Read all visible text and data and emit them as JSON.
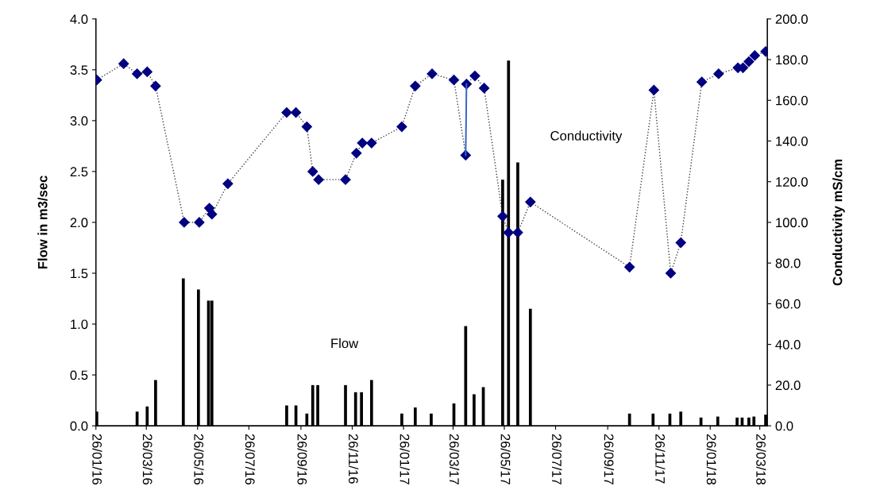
{
  "chart_data": {
    "type": "bar",
    "ylabel": "Flow in m3/sec",
    "y2label": "Conductivity mS/cm",
    "xlim": [
      "2016-01-26",
      "2018-04-04"
    ],
    "xticks": [
      {
        "value": "2016-01-26",
        "label": "26/01/16"
      },
      {
        "value": "2016-03-26",
        "label": "26/03/16"
      },
      {
        "value": "2016-05-26",
        "label": "26/05/16"
      },
      {
        "value": "2016-07-26",
        "label": "26/07/16"
      },
      {
        "value": "2016-09-26",
        "label": "26/09/16"
      },
      {
        "value": "2016-11-26",
        "label": "26/11/16"
      },
      {
        "value": "2017-01-26",
        "label": "26/01/17"
      },
      {
        "value": "2017-03-26",
        "label": "26/03/17"
      },
      {
        "value": "2017-05-26",
        "label": "26/05/17"
      },
      {
        "value": "2017-07-26",
        "label": "26/07/17"
      },
      {
        "value": "2017-09-26",
        "label": "26/09/17"
      },
      {
        "value": "2017-11-26",
        "label": "26/11/17"
      },
      {
        "value": "2018-01-26",
        "label": "26/01/18"
      },
      {
        "value": "2018-03-26",
        "label": "26/03/18"
      }
    ],
    "ylim": [
      0,
      4
    ],
    "yticks": [
      {
        "value": 0,
        "label": "0.0"
      },
      {
        "value": 0.5,
        "label": "0.5"
      },
      {
        "value": 1,
        "label": "1.0"
      },
      {
        "value": 1.5,
        "label": "1.5"
      },
      {
        "value": 2,
        "label": "2.0"
      },
      {
        "value": 2.5,
        "label": "2.5"
      },
      {
        "value": 3,
        "label": "3.0"
      },
      {
        "value": 3.5,
        "label": "3.5"
      },
      {
        "value": 4,
        "label": "4.0"
      }
    ],
    "y2lim": [
      0,
      200
    ],
    "y2ticks": [
      {
        "value": 0,
        "label": "0.0"
      },
      {
        "value": 20,
        "label": "20.0"
      },
      {
        "value": 40,
        "label": "40.0"
      },
      {
        "value": 60,
        "label": "60.0"
      },
      {
        "value": 80,
        "label": "80.0"
      },
      {
        "value": 100,
        "label": "100.0"
      },
      {
        "value": 120,
        "label": "120.0"
      },
      {
        "value": 140,
        "label": "140.0"
      },
      {
        "value": 160,
        "label": "160.0"
      },
      {
        "value": 180,
        "label": "180.0"
      },
      {
        "value": 200,
        "label": "200.0"
      }
    ],
    "grid": false,
    "legend": false,
    "series": [
      {
        "name": "Flow",
        "color": "#000000",
        "x": [
          "2016-01-27",
          "2016-03-15",
          "2016-03-27",
          "2016-04-06",
          "2016-05-09",
          "2016-05-27",
          "2016-06-08",
          "2016-06-12",
          "2016-09-09",
          "2016-09-20",
          "2016-10-03",
          "2016-10-10",
          "2016-10-16",
          "2016-11-18",
          "2016-11-30",
          "2016-12-07",
          "2016-12-19",
          "2017-01-24",
          "2017-02-09",
          "2017-02-28",
          "2017-03-27",
          "2017-04-10",
          "2017-04-20",
          "2017-05-01",
          "2017-05-24",
          "2017-05-31",
          "2017-06-11",
          "2017-06-26",
          "2017-10-22",
          "2017-11-19",
          "2017-12-09",
          "2017-12-22",
          "2018-01-15",
          "2018-02-04",
          "2018-02-27",
          "2018-03-05",
          "2018-03-13",
          "2018-03-19",
          "2018-04-02"
        ],
        "values": [
          0.14,
          0.14,
          0.19,
          0.45,
          1.45,
          1.34,
          1.23,
          1.23,
          0.2,
          0.2,
          0.12,
          0.4,
          0.4,
          0.4,
          0.33,
          0.33,
          0.45,
          0.12,
          0.18,
          0.12,
          0.22,
          0.98,
          0.31,
          0.38,
          2.42,
          3.59,
          2.59,
          1.15,
          0.12,
          0.12,
          0.12,
          0.14,
          0.08,
          0.09,
          0.08,
          0.08,
          0.08,
          0.09,
          0.11
        ]
      },
      {
        "name": "Conductivity",
        "type": "line",
        "axis": "y2",
        "color": "#000080",
        "marker": "diamond",
        "line_style": "dotted",
        "x": [
          "2016-01-27",
          "2016-02-28",
          "2016-03-15",
          "2016-03-27",
          "2016-04-06",
          "2016-05-10",
          "2016-05-28",
          "2016-06-09",
          "2016-06-12",
          "2016-07-01",
          "2016-09-09",
          "2016-09-20",
          "2016-10-03",
          "2016-10-10",
          "2016-10-17",
          "2016-11-18",
          "2016-12-01",
          "2016-12-08",
          "2016-12-19",
          "2017-01-24",
          "2017-02-09",
          "2017-03-01",
          "2017-03-27",
          "2017-04-10",
          "2017-04-11",
          "2017-04-21",
          "2017-05-02",
          "2017-05-24",
          "2017-05-31",
          "2017-06-11",
          "2017-06-26",
          "2017-10-22",
          "2017-11-20",
          "2017-12-10",
          "2017-12-22",
          "2018-01-16",
          "2018-02-05",
          "2018-02-28",
          "2018-03-06",
          "2018-03-13",
          "2018-03-20",
          "2018-04-02"
        ],
        "values": [
          170,
          178,
          173,
          174,
          167,
          100,
          100,
          107,
          104,
          119,
          154,
          154,
          147,
          125,
          121,
          121,
          134,
          139,
          139,
          147,
          167,
          173,
          170,
          133,
          168,
          172,
          166,
          103,
          95,
          95,
          110,
          78,
          165,
          75,
          90,
          169,
          173,
          176,
          176,
          179,
          182,
          184
        ]
      },
      {
        "type": "line",
        "axis": "y2",
        "color": "#3366cc",
        "marker": "none",
        "line_style": "solid",
        "x": [
          "2017-04-10",
          "2017-04-11"
        ],
        "values": [
          133,
          168
        ]
      }
    ]
  }
}
